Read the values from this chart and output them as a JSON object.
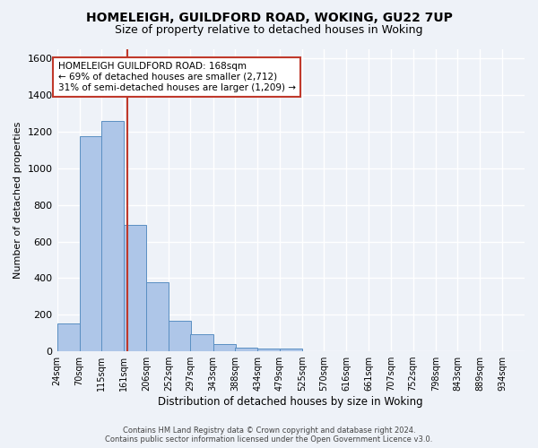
{
  "title": "HOMELEIGH, GUILDFORD ROAD, WOKING, GU22 7UP",
  "subtitle": "Size of property relative to detached houses in Woking",
  "xlabel": "Distribution of detached houses by size in Woking",
  "ylabel": "Number of detached properties",
  "bar_heights": [
    150,
    1175,
    1260,
    690,
    375,
    165,
    93,
    38,
    22,
    15,
    13,
    0,
    0,
    0,
    0,
    0,
    0,
    0,
    0,
    0,
    0
  ],
  "bin_labels": [
    "24sqm",
    "70sqm",
    "115sqm",
    "161sqm",
    "206sqm",
    "252sqm",
    "297sqm",
    "343sqm",
    "388sqm",
    "434sqm",
    "479sqm",
    "525sqm",
    "570sqm",
    "616sqm",
    "661sqm",
    "707sqm",
    "752sqm",
    "798sqm",
    "843sqm",
    "889sqm",
    "934sqm"
  ],
  "bin_edges": [
    24,
    70,
    115,
    161,
    206,
    252,
    297,
    343,
    388,
    434,
    479,
    525,
    570,
    616,
    661,
    707,
    752,
    798,
    843,
    889,
    934
  ],
  "bin_width": 46,
  "bar_color": "#aec6e8",
  "bar_edge_color": "#5a8fc2",
  "vline_x": 168,
  "vline_color": "#c0392b",
  "annotation_title": "HOMELEIGH GUILDFORD ROAD: 168sqm",
  "annotation_line1": "← 69% of detached houses are smaller (2,712)",
  "annotation_line2": "31% of semi-detached houses are larger (1,209) →",
  "annotation_box_color": "#ffffff",
  "annotation_box_edge": "#c0392b",
  "ylim": [
    0,
    1650
  ],
  "yticks": [
    0,
    200,
    400,
    600,
    800,
    1000,
    1200,
    1400,
    1600
  ],
  "footer1": "Contains HM Land Registry data © Crown copyright and database right 2024.",
  "footer2": "Contains public sector information licensed under the Open Government Licence v3.0.",
  "background_color": "#eef2f8",
  "grid_color": "#ffffff"
}
